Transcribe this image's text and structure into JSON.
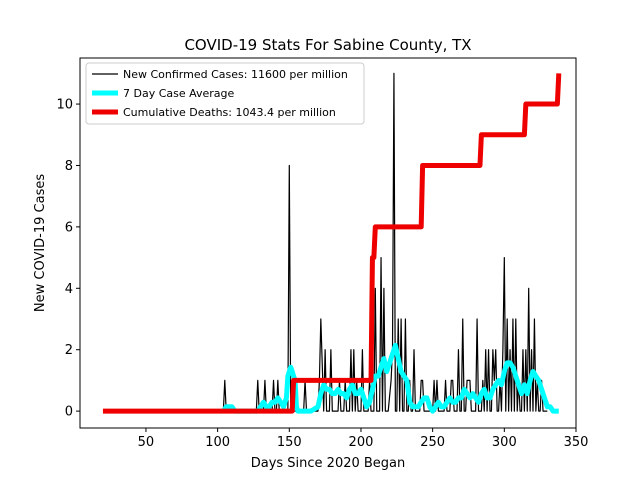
{
  "chart_data": {
    "type": "line",
    "title": "COVID-19 Stats For Sabine County, TX",
    "xlabel": "Days Since 2020 Began",
    "ylabel": "New COVID-19 Cases",
    "xlim": [
      4,
      350
    ],
    "ylim": [
      -0.55,
      11.5
    ],
    "xticks": [
      50,
      100,
      150,
      200,
      250,
      300,
      350
    ],
    "yticks": [
      0,
      2,
      4,
      6,
      8,
      10
    ],
    "grid": false,
    "legend_position": "top-left",
    "series": [
      {
        "name": "New Confirmed Cases: 11600 per million",
        "color": "#000000",
        "x": [
          104,
          105,
          106,
          107,
          110,
          111,
          127,
          128,
          129,
          132,
          133,
          134,
          138,
          139,
          140,
          141,
          142,
          143,
          144,
          149,
          150,
          151,
          152,
          160,
          161,
          162,
          170,
          171,
          172,
          174,
          175,
          176,
          178,
          179,
          180,
          184,
          185,
          186,
          188,
          189,
          190,
          192,
          193,
          194,
          195,
          196,
          197,
          198,
          200,
          201,
          202,
          205,
          206,
          207,
          209,
          210,
          211,
          213,
          214,
          215,
          216,
          217,
          218,
          219,
          221,
          222,
          223,
          224,
          225,
          226,
          227,
          228,
          229,
          230,
          231,
          232,
          233,
          234,
          235,
          236,
          237,
          238,
          239,
          241,
          242,
          243,
          244,
          245,
          246,
          250,
          251,
          252,
          253,
          254,
          255,
          256,
          258,
          259,
          260,
          262,
          263,
          264,
          265,
          267,
          268,
          269,
          270,
          271,
          272,
          273,
          274,
          276,
          277,
          278,
          280,
          281,
          282,
          283,
          284,
          285,
          286,
          287,
          288,
          289,
          290,
          291,
          292,
          293,
          294,
          295,
          296,
          297,
          298,
          299,
          300,
          301,
          302,
          303,
          304,
          305,
          306,
          307,
          308,
          309,
          310,
          311,
          312,
          313,
          314,
          315,
          316,
          317,
          318,
          319,
          320,
          321,
          322,
          323,
          324,
          325,
          326,
          327,
          328,
          329,
          330
        ],
        "y": [
          0,
          1,
          0,
          0,
          0,
          0,
          0,
          1,
          0,
          0,
          1,
          0,
          0,
          1,
          0,
          0,
          1,
          0,
          0,
          0,
          8,
          0,
          0,
          0,
          1,
          0,
          0,
          1,
          3,
          0,
          2,
          0,
          0,
          2,
          0,
          0,
          1,
          0,
          0,
          1,
          0,
          0,
          2,
          0,
          2,
          0,
          1,
          0,
          0,
          2,
          0,
          0,
          1,
          0,
          0,
          4,
          0,
          0,
          5,
          0,
          4,
          0,
          0,
          0,
          1,
          2,
          11,
          0,
          0,
          3,
          0,
          3,
          0,
          0,
          3,
          0,
          0,
          1,
          0,
          0,
          2,
          0,
          0,
          0,
          1,
          1,
          0,
          0,
          0,
          0,
          1,
          0,
          1,
          0,
          0,
          0,
          0,
          1,
          0,
          0,
          1,
          1,
          0,
          0,
          2,
          0,
          0,
          3,
          0,
          0,
          1,
          1,
          0,
          0,
          0,
          3,
          0,
          0,
          0,
          1,
          0,
          2,
          0,
          2,
          0,
          0,
          2,
          1,
          2,
          0,
          0,
          1,
          0,
          2,
          5,
          0,
          3,
          0,
          2,
          0,
          3,
          0,
          3,
          0,
          1,
          0,
          0,
          2,
          0,
          2,
          0,
          4,
          0,
          2,
          0,
          3,
          0,
          1,
          0,
          0,
          1,
          0,
          0,
          0,
          0
        ]
      },
      {
        "name": "7 Day Case Average",
        "color": "#00ffff",
        "x": [
          104,
          106,
          108,
          110,
          112,
          128,
          130,
          132,
          134,
          136,
          138,
          140,
          142,
          144,
          146,
          148,
          149,
          150,
          151,
          152,
          153,
          154,
          155,
          156,
          160,
          165,
          170,
          172,
          174,
          176,
          178,
          180,
          182,
          184,
          186,
          188,
          190,
          192,
          194,
          196,
          198,
          200,
          202,
          204,
          206,
          208,
          210,
          212,
          214,
          216,
          218,
          220,
          222,
          224,
          226,
          228,
          230,
          232,
          234,
          236,
          238,
          240,
          242,
          244,
          246,
          248,
          250,
          252,
          254,
          256,
          258,
          260,
          262,
          264,
          266,
          268,
          270,
          272,
          274,
          276,
          278,
          280,
          282,
          284,
          286,
          288,
          290,
          292,
          294,
          296,
          298,
          300,
          302,
          304,
          306,
          308,
          310,
          312,
          314,
          316,
          318,
          320,
          322,
          324,
          326,
          328,
          330,
          332,
          334,
          336,
          338
        ],
        "y": [
          0,
          0.14,
          0.14,
          0.14,
          0,
          0,
          0.14,
          0.29,
          0.14,
          0.14,
          0.29,
          0.29,
          0.43,
          0.29,
          0.14,
          0.43,
          1.14,
          1.29,
          1.43,
          1.29,
          1.14,
          1.0,
          0.14,
          0,
          0,
          0,
          0.14,
          0.57,
          0.86,
          0.71,
          0.71,
          0.57,
          0.57,
          0.71,
          0.57,
          0.57,
          0.43,
          0.71,
          0.86,
          0.57,
          0.57,
          0.71,
          0.43,
          0.14,
          0.29,
          0.71,
          1.14,
          1.14,
          1.43,
          1.71,
          1.29,
          1.57,
          1.86,
          2.14,
          1.71,
          1.29,
          1.14,
          1.0,
          0.29,
          0.14,
          0.14,
          0.14,
          0.29,
          0.43,
          0.43,
          0.14,
          0,
          0.14,
          0.29,
          0.14,
          0.14,
          0.29,
          0.43,
          0.29,
          0.29,
          0.43,
          0.43,
          0.71,
          0.57,
          0.43,
          0.57,
          0.43,
          0.29,
          0.57,
          0.71,
          0.43,
          0.43,
          0.71,
          0.86,
          1.0,
          0.86,
          1.29,
          1.57,
          1.57,
          1.43,
          1.14,
          0.86,
          0.57,
          0.86,
          0.57,
          1.0,
          1.29,
          1.14,
          1.0,
          0.71,
          0.43,
          0.14,
          0.14,
          0,
          0,
          0
        ]
      },
      {
        "name": "Cumulative Deaths: 1043.4 per million",
        "color": "#ee0000",
        "x": [
          20,
          152,
          153,
          205,
          207,
          208,
          209,
          210,
          211,
          242,
          243,
          244,
          283,
          284,
          286,
          314,
          315,
          316,
          337,
          338
        ],
        "y": [
          0,
          0,
          1,
          1,
          1,
          5,
          5,
          6,
          6,
          6,
          8,
          8,
          8,
          9,
          9,
          9,
          10,
          10,
          10,
          11
        ]
      }
    ]
  }
}
